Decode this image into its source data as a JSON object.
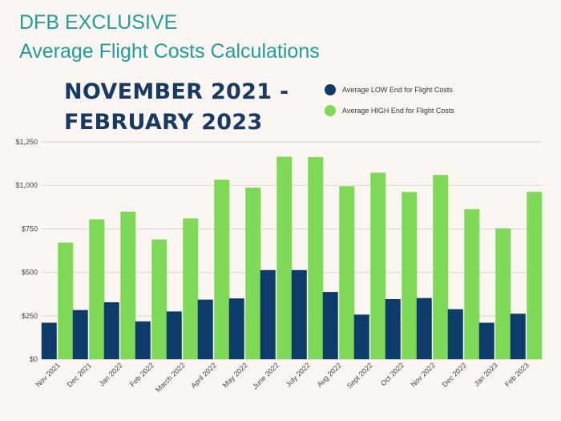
{
  "header": {
    "line1": "DFB EXCLUSIVE",
    "line2": "Average Flight Costs Calculations",
    "period_line1": "NOVEMBER 2021 -",
    "period_line2": "FEBRUARY 2023"
  },
  "colors": {
    "low": "#0d3b6a",
    "high": "#7ed957",
    "title": "#1f9f9a",
    "period": "#163a63"
  },
  "chart_data": {
    "type": "bar",
    "title": "Average Flight Costs Calculations",
    "xlabel": "",
    "ylabel": "",
    "ylim": [
      0,
      1250
    ],
    "yticks": [
      0,
      250,
      500,
      750,
      1000,
      1250
    ],
    "ytick_labels": [
      "$0",
      "$250",
      "$500",
      "$750",
      "$1,000",
      "$1,250"
    ],
    "legend_position": "top-right",
    "categories": [
      "Nov 2021",
      "Dec 2021",
      "Jan 2022",
      "Feb 2022",
      "March 2022",
      "April 2022",
      "May 2022",
      "June 2022",
      "July 2022",
      "Aug 2022",
      "Sept 2022",
      "Oct 2022",
      "Nov 2022",
      "Dec 2022",
      "Jan 2023",
      "Feb 2023"
    ],
    "series": [
      {
        "name": "Average LOW End for Flight Costs",
        "values": [
          210,
          283,
          328,
          218,
          275,
          343,
          350,
          513,
          513,
          387,
          257,
          346,
          352,
          288,
          210,
          262
        ]
      },
      {
        "name": "Average HIGH End for Flight Costs",
        "values": [
          671,
          805,
          849,
          689,
          810,
          1033,
          987,
          1165,
          1163,
          995,
          1073,
          962,
          1060,
          863,
          753,
          963
        ]
      }
    ]
  }
}
